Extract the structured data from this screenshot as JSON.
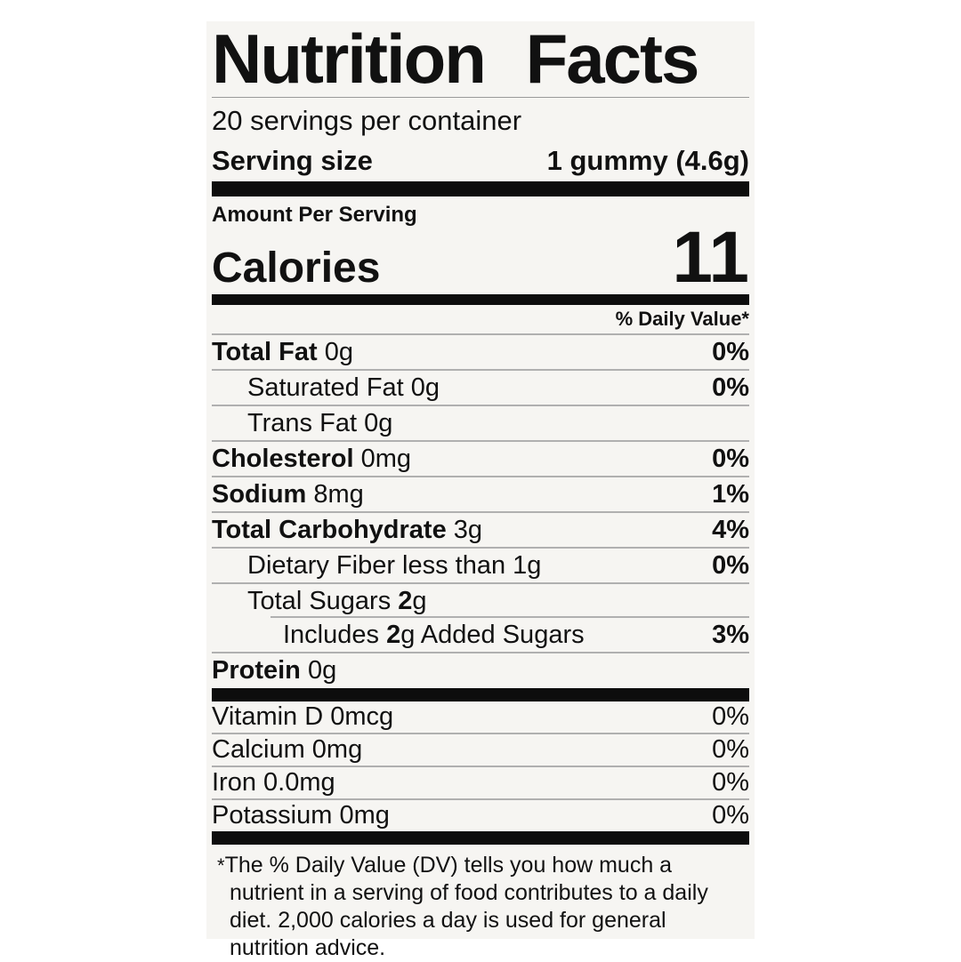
{
  "colors": {
    "bar": "#0d0d0d",
    "label_bg": "#f6f5f2",
    "hairline": "#b0b0b0",
    "text": "#111111"
  },
  "label": {
    "title": "Nutrition Facts",
    "servings_per_container": "20 servings per container",
    "serving_size": {
      "label": "Serving size",
      "value": "1 gummy (4.6g)"
    },
    "amount_per_serving": "Amount Per Serving",
    "calories": {
      "label": "Calories",
      "value": "11"
    },
    "daily_value_header": "% Daily Value*",
    "nutrients": [
      {
        "indent": 0,
        "parts": [
          {
            "t": "Total Fat",
            "b": true
          },
          {
            "t": " 0g"
          }
        ],
        "dv": "0%",
        "dvBold": true,
        "sep": "full"
      },
      {
        "indent": 1,
        "parts": [
          {
            "t": "Saturated Fat 0g"
          }
        ],
        "dv": "0%",
        "dvBold": true,
        "sep": "full"
      },
      {
        "indent": 1,
        "parts": [
          {
            "t": "Trans Fat 0g"
          }
        ],
        "dv": "",
        "sep": "full"
      },
      {
        "indent": 0,
        "parts": [
          {
            "t": "Cholesterol",
            "b": true
          },
          {
            "t": " 0mg"
          }
        ],
        "dv": "0%",
        "dvBold": true,
        "sep": "full"
      },
      {
        "indent": 0,
        "parts": [
          {
            "t": "Sodium",
            "b": true
          },
          {
            "t": " 8mg"
          }
        ],
        "dv": "1%",
        "dvBold": true,
        "sep": "full"
      },
      {
        "indent": 0,
        "parts": [
          {
            "t": "Total Carbohydrate",
            "b": true
          },
          {
            "t": " 3g"
          }
        ],
        "dv": "4%",
        "dvBold": true,
        "sep": "full"
      },
      {
        "indent": 1,
        "parts": [
          {
            "t": "Dietary Fiber less than 1g"
          }
        ],
        "dv": "0%",
        "dvBold": true,
        "sep": "full"
      },
      {
        "indent": 1,
        "parts": [
          {
            "t": "Total Sugars "
          },
          {
            "t": "2",
            "b": true
          },
          {
            "t": "g"
          }
        ],
        "dv": "",
        "sep": "indent"
      },
      {
        "indent": 2,
        "parts": [
          {
            "t": "Includes "
          },
          {
            "t": "2",
            "b": true
          },
          {
            "t": "g Added Sugars"
          }
        ],
        "dv": "3%",
        "dvBold": true,
        "sep": "full"
      },
      {
        "indent": 0,
        "parts": [
          {
            "t": "Protein",
            "b": true
          },
          {
            "t": " 0g"
          }
        ],
        "dv": "",
        "sep": "none"
      }
    ],
    "vitamins": [
      {
        "indent": 0,
        "parts": [
          {
            "t": "Vitamin D 0mcg"
          }
        ],
        "dv": "0%",
        "sep": "full"
      },
      {
        "indent": 0,
        "parts": [
          {
            "t": "Calcium 0mg"
          }
        ],
        "dv": "0%",
        "sep": "full"
      },
      {
        "indent": 0,
        "parts": [
          {
            "t": "Iron 0.0mg"
          }
        ],
        "dv": "0%",
        "sep": "full"
      },
      {
        "indent": 0,
        "parts": [
          {
            "t": "Potassium 0mg"
          }
        ],
        "dv": "0%",
        "sep": "none"
      }
    ],
    "footnote_marker": "*",
    "footnote_text": "The % Daily Value (DV) tells you how much a nutrient in a serving of food contributes to a daily diet. 2,000 calories a day is used for general nutrition advice."
  }
}
